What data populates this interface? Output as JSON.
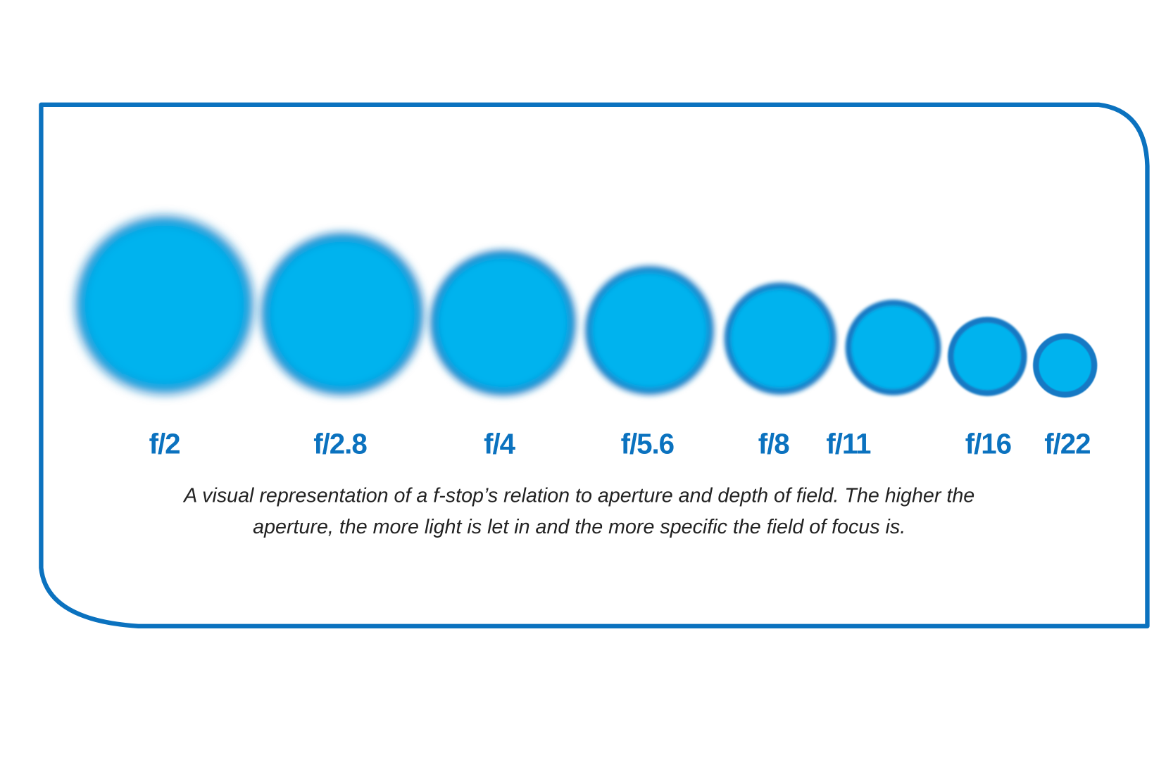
{
  "stops": [
    "f/2",
    "f/2.8",
    "f/4",
    "f/5.6",
    "f/8",
    "f/11",
    "f/16",
    "f/22"
  ],
  "caption": [
    "A visual representation of a f-stop’s relation to aperture and depth of field. The higher the",
    "aperture, the more light is let in and the more specific the field of focus is."
  ]
}
